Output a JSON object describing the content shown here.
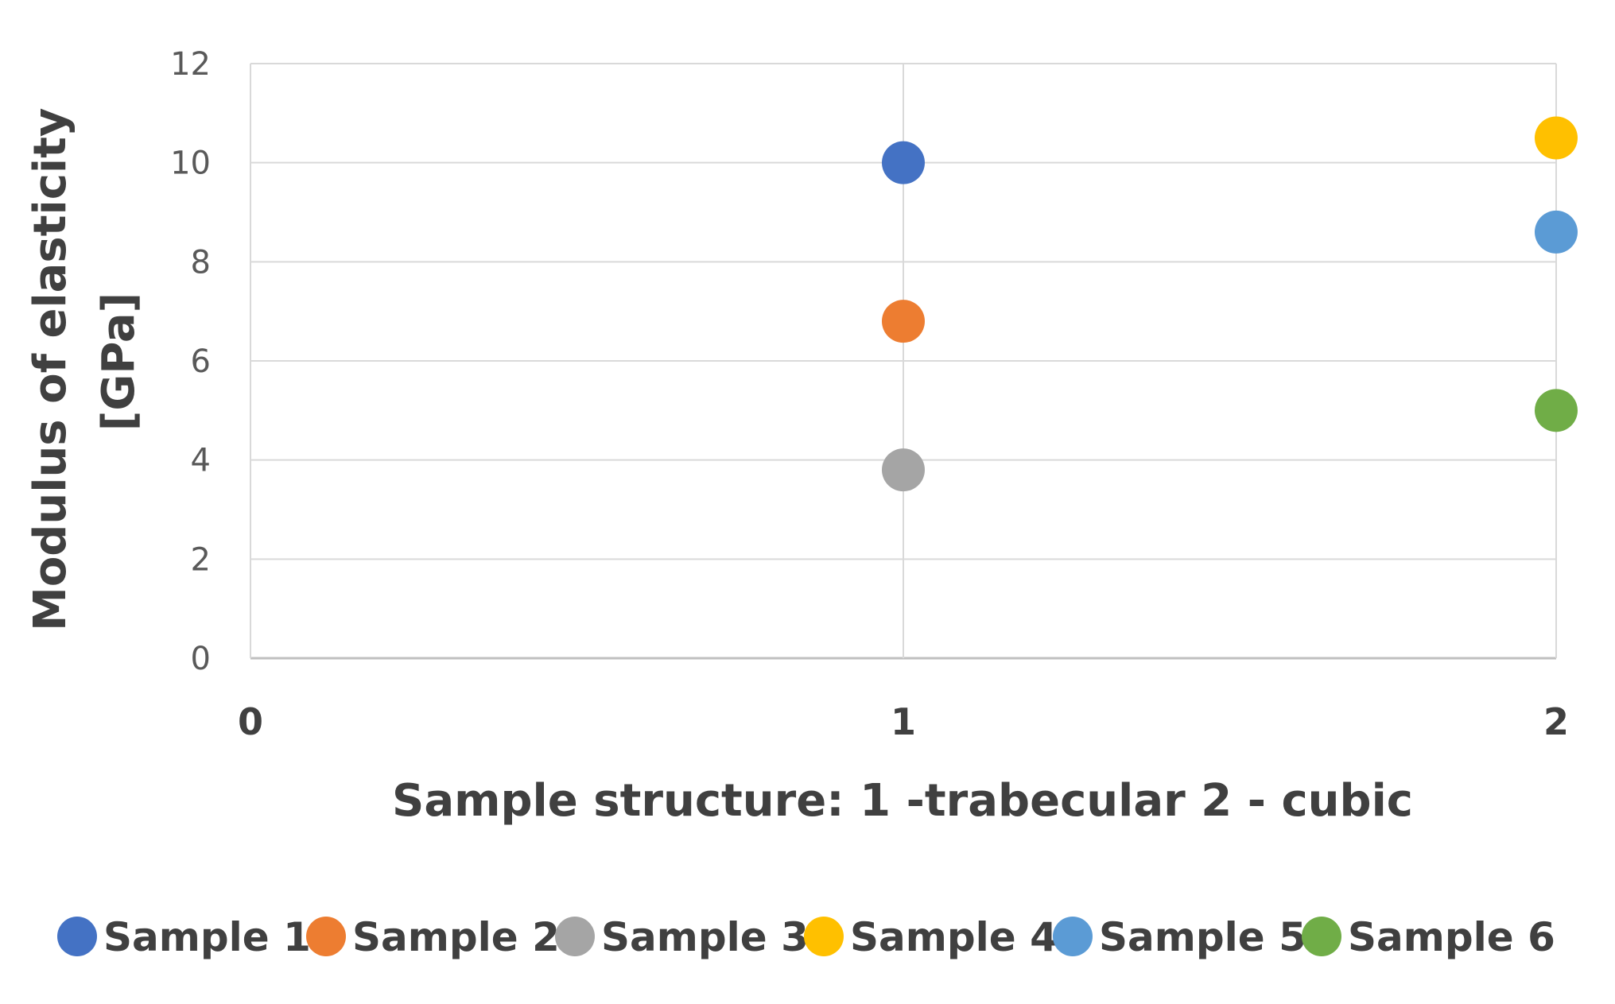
{
  "chart_data": {
    "type": "scatter",
    "xlabel": "Sample structure: 1 -trabecular  2 - cubic",
    "ylabel": [
      "Modulus of elasticity",
      "[GPa]"
    ],
    "xlim": [
      0,
      2
    ],
    "ylim": [
      0,
      12
    ],
    "xticks": [
      "0",
      "1",
      "2"
    ],
    "yticks": [
      "0",
      "2",
      "4",
      "6",
      "8",
      "10",
      "12"
    ],
    "grid": true,
    "legend_position": "bottom",
    "series": [
      {
        "name": "Sample 1",
        "color": "#4472C4",
        "x": [
          1
        ],
        "y": [
          10
        ]
      },
      {
        "name": "Sample 2",
        "color": "#ED7D31",
        "x": [
          1
        ],
        "y": [
          6.8
        ]
      },
      {
        "name": "Sample 3",
        "color": "#A5A5A5",
        "x": [
          1
        ],
        "y": [
          3.8
        ]
      },
      {
        "name": "Sample 4",
        "color": "#FFC000",
        "x": [
          2
        ],
        "y": [
          10.5
        ]
      },
      {
        "name": "Sample 5",
        "color": "#5B9BD5",
        "x": [
          2
        ],
        "y": [
          8.6
        ]
      },
      {
        "name": "Sample 6",
        "color": "#70AD47",
        "x": [
          2
        ],
        "y": [
          5
        ]
      }
    ]
  }
}
